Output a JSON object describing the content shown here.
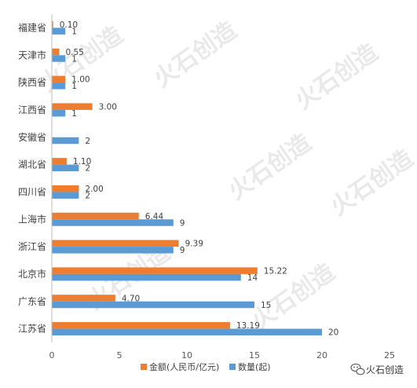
{
  "chart_data": {
    "type": "bar",
    "orientation": "horizontal",
    "categories": [
      "福建省",
      "天津市",
      "陕西省",
      "江西省",
      "安徽省",
      "湖北省",
      "四川省",
      "上海市",
      "浙江省",
      "北京市",
      "广东省",
      "江苏省"
    ],
    "series": [
      {
        "name": "金额(人民币/亿元)",
        "color": "#ED7D31",
        "values": [
          0.1,
          0.55,
          1.0,
          3.0,
          null,
          1.1,
          2.0,
          6.44,
          9.39,
          15.22,
          4.7,
          13.19
        ],
        "labels": [
          "0.10",
          "0.55",
          "1.00",
          "3.00",
          "",
          "1.10",
          "2.00",
          "6.44",
          "9.39",
          "15.22",
          "4.70",
          "13.19"
        ]
      },
      {
        "name": "数量(起)",
        "color": "#5B9BD5",
        "values": [
          1,
          1,
          1,
          1,
          2,
          2,
          2,
          9,
          9,
          14,
          15,
          20
        ],
        "labels": [
          "1",
          "1",
          "1",
          "1",
          "2",
          "2",
          "2",
          "9",
          "9",
          "14",
          "15",
          "20"
        ]
      }
    ],
    "xlim": [
      0,
      25
    ],
    "xticks": [
      "0",
      "5",
      "10",
      "15",
      "20",
      "25"
    ],
    "grid": false,
    "legend_position": "bottom"
  },
  "watermark": {
    "corner_text": "火石创造",
    "repeated_text": "火石创造"
  }
}
